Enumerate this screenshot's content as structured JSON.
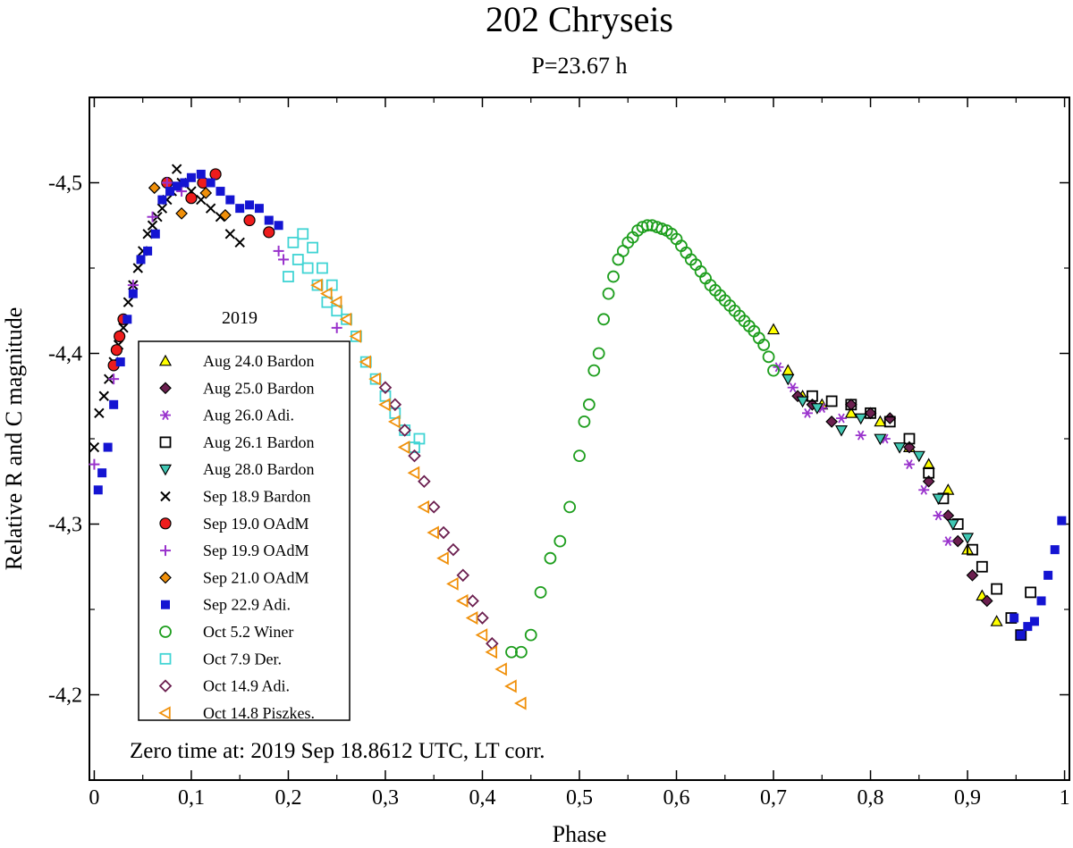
{
  "chart_data": {
    "type": "scatter",
    "title": "202 Chryseis",
    "subtitle": "P=23.67 h",
    "xlabel": "Phase",
    "ylabel": "Relative R and C magnitude",
    "xlim": [
      -0.005,
      1.005
    ],
    "ylim": [
      -4.55,
      -4.15
    ],
    "x_ticks": [
      0,
      0.1,
      0.2,
      0.3,
      0.4,
      0.5,
      0.6,
      0.7,
      0.8,
      0.9,
      1
    ],
    "x_tick_labels": [
      "0",
      "0,1",
      "0,2",
      "0,3",
      "0,4",
      "0,5",
      "0,6",
      "0,7",
      "0,8",
      "0,9",
      "1"
    ],
    "y_ticks": [
      -4.5,
      -4.4,
      -4.3,
      -4.2
    ],
    "y_tick_labels": [
      "-4,5",
      "-4,4",
      "-4,3",
      "-4,2"
    ],
    "legend_title": "2019",
    "legend_position": "left",
    "annotation": "Zero time at: 2019 Sep 18.8612 UTC, LT corr.",
    "series": [
      {
        "name": "Aug 24.0 Bardon",
        "marker": "triangle-up",
        "color": "#ffff00",
        "x": [
          0.7,
          0.715,
          0.73,
          0.75,
          0.78,
          0.81,
          0.84,
          0.86,
          0.88,
          0.9,
          0.915,
          0.93
        ],
        "y": [
          -4.414,
          -4.39,
          -4.375,
          -4.37,
          -4.365,
          -4.36,
          -4.345,
          -4.335,
          -4.32,
          -4.285,
          -4.258,
          -4.243
        ]
      },
      {
        "name": "Aug 25.0 Bardon",
        "marker": "diamond",
        "color": "#6b1f4f",
        "x": [
          0.725,
          0.74,
          0.76,
          0.78,
          0.8,
          0.82,
          0.84,
          0.86,
          0.88,
          0.89,
          0.905,
          0.92
        ],
        "y": [
          -4.375,
          -4.37,
          -4.36,
          -4.37,
          -4.365,
          -4.362,
          -4.345,
          -4.325,
          -4.305,
          -4.29,
          -4.27,
          -4.255
        ]
      },
      {
        "name": "Aug 26.0 Adi.",
        "marker": "asterisk",
        "color": "#9932cc",
        "x": [
          0.705,
          0.72,
          0.735,
          0.75,
          0.77,
          0.79,
          0.815,
          0.84,
          0.855,
          0.87,
          0.88
        ],
        "y": [
          -4.392,
          -4.38,
          -4.365,
          -4.368,
          -4.362,
          -4.352,
          -4.35,
          -4.335,
          -4.32,
          -4.305,
          -4.29
        ]
      },
      {
        "name": "Aug 26.1 Bardon",
        "marker": "square-open",
        "color": "#000000",
        "x": [
          0.74,
          0.76,
          0.78,
          0.8,
          0.82,
          0.84,
          0.86,
          0.875,
          0.89,
          0.905,
          0.915,
          0.93,
          0.945,
          0.955,
          0.965
        ],
        "y": [
          -4.375,
          -4.372,
          -4.37,
          -4.365,
          -4.36,
          -4.35,
          -4.33,
          -4.315,
          -4.3,
          -4.285,
          -4.275,
          -4.262,
          -4.245,
          -4.235,
          -4.26
        ]
      },
      {
        "name": "Aug 28.0 Bardon",
        "marker": "triangle-down",
        "color": "#40c8b4",
        "x": [
          0.715,
          0.73,
          0.745,
          0.77,
          0.79,
          0.81,
          0.83,
          0.85,
          0.87,
          0.885,
          0.9
        ],
        "y": [
          -4.385,
          -4.372,
          -4.368,
          -4.355,
          -4.362,
          -4.35,
          -4.345,
          -4.34,
          -4.315,
          -4.3,
          -4.292
        ]
      },
      {
        "name": "Sep 18.9 Bardon",
        "marker": "x",
        "color": "#000000",
        "x": [
          0.0,
          0.005,
          0.01,
          0.015,
          0.02,
          0.025,
          0.03,
          0.035,
          0.04,
          0.045,
          0.05,
          0.055,
          0.06,
          0.065,
          0.07,
          0.075,
          0.08,
          0.085,
          0.09,
          0.1,
          0.11,
          0.12,
          0.13,
          0.14,
          0.15
        ],
        "y": [
          -4.345,
          -4.365,
          -4.375,
          -4.385,
          -4.395,
          -4.405,
          -4.415,
          -4.43,
          -4.44,
          -4.45,
          -4.46,
          -4.47,
          -4.475,
          -4.48,
          -4.485,
          -4.49,
          -4.495,
          -4.508,
          -4.5,
          -4.495,
          -4.49,
          -4.485,
          -4.48,
          -4.47,
          -4.465
        ]
      },
      {
        "name": "Sep 19.0 OAdM",
        "marker": "circle",
        "color": "#ee1c1c",
        "x": [
          0.02,
          0.023,
          0.026,
          0.03,
          0.075,
          0.1,
          0.112,
          0.125,
          0.16,
          0.18
        ],
        "y": [
          -4.393,
          -4.402,
          -4.41,
          -4.42,
          -4.5,
          -4.491,
          -4.5,
          -4.505,
          -4.478,
          -4.471
        ]
      },
      {
        "name": "Sep 19.9 OAdM",
        "marker": "plus",
        "color": "#9932cc",
        "x": [
          0.0,
          0.02,
          0.04,
          0.06,
          0.075,
          0.09,
          0.19,
          0.195,
          0.25
        ],
        "y": [
          -4.335,
          -4.385,
          -4.44,
          -4.48,
          -4.5,
          -4.495,
          -4.46,
          -4.455,
          -4.415
        ]
      },
      {
        "name": "Sep 21.0 OAdM",
        "marker": "diamond",
        "color": "#f0900a",
        "x": [
          0.062,
          0.09,
          0.115,
          0.135
        ],
        "y": [
          -4.497,
          -4.482,
          -4.494,
          -4.481
        ]
      },
      {
        "name": "Sep 22.9 Adi.",
        "marker": "square",
        "color": "#1414d2",
        "x": [
          0.004,
          0.008,
          0.014,
          0.02,
          0.027,
          0.034,
          0.04,
          0.048,
          0.055,
          0.063,
          0.07,
          0.078,
          0.085,
          0.093,
          0.1,
          0.11,
          0.12,
          0.13,
          0.14,
          0.15,
          0.16,
          0.17,
          0.18,
          0.19,
          0.948,
          0.955,
          0.962,
          0.969,
          0.976,
          0.983,
          0.99,
          0.997
        ],
        "y": [
          -4.32,
          -4.33,
          -4.345,
          -4.37,
          -4.395,
          -4.42,
          -4.435,
          -4.455,
          -4.46,
          -4.47,
          -4.49,
          -4.495,
          -4.498,
          -4.5,
          -4.503,
          -4.505,
          -4.5,
          -4.495,
          -4.49,
          -4.485,
          -4.487,
          -4.485,
          -4.478,
          -4.475,
          -4.245,
          -4.235,
          -4.24,
          -4.243,
          -4.255,
          -4.27,
          -4.285,
          -4.302
        ]
      },
      {
        "name": "Oct 5.2 Winer",
        "marker": "circle-open",
        "color": "#1e9e1e",
        "x": [
          0.43,
          0.44,
          0.45,
          0.46,
          0.47,
          0.48,
          0.49,
          0.5,
          0.505,
          0.51,
          0.515,
          0.52,
          0.525,
          0.53,
          0.535,
          0.54,
          0.545,
          0.55,
          0.555,
          0.56,
          0.565,
          0.57,
          0.575,
          0.58,
          0.585,
          0.59,
          0.595,
          0.6,
          0.605,
          0.61,
          0.615,
          0.62,
          0.625,
          0.63,
          0.635,
          0.64,
          0.645,
          0.65,
          0.655,
          0.66,
          0.665,
          0.67,
          0.675,
          0.68,
          0.685,
          0.69,
          0.695,
          0.7
        ],
        "y": [
          -4.225,
          -4.225,
          -4.235,
          -4.26,
          -4.28,
          -4.29,
          -4.31,
          -4.34,
          -4.36,
          -4.37,
          -4.39,
          -4.4,
          -4.42,
          -4.435,
          -4.445,
          -4.455,
          -4.46,
          -4.465,
          -4.468,
          -4.472,
          -4.474,
          -4.475,
          -4.475,
          -4.474,
          -4.473,
          -4.472,
          -4.47,
          -4.467,
          -4.463,
          -4.459,
          -4.455,
          -4.452,
          -4.448,
          -4.444,
          -4.44,
          -4.437,
          -4.434,
          -4.431,
          -4.428,
          -4.425,
          -4.422,
          -4.419,
          -4.416,
          -4.413,
          -4.409,
          -4.405,
          -4.398,
          -4.39
        ]
      },
      {
        "name": "Oct 7.9 Der.",
        "marker": "square-open",
        "color": "#40d4d4",
        "x": [
          0.2,
          0.205,
          0.21,
          0.215,
          0.22,
          0.225,
          0.23,
          0.235,
          0.24,
          0.245,
          0.25,
          0.26,
          0.27,
          0.28,
          0.29,
          0.3,
          0.31,
          0.32,
          0.33,
          0.335
        ],
        "y": [
          -4.445,
          -4.465,
          -4.455,
          -4.47,
          -4.45,
          -4.462,
          -4.44,
          -4.45,
          -4.43,
          -4.44,
          -4.425,
          -4.42,
          -4.41,
          -4.395,
          -4.385,
          -4.375,
          -4.365,
          -4.355,
          -4.345,
          -4.35
        ]
      },
      {
        "name": "Oct 14.9 Adi.",
        "marker": "diamond-open",
        "color": "#6b1f4f",
        "x": [
          0.3,
          0.31,
          0.32,
          0.33,
          0.34,
          0.35,
          0.36,
          0.37,
          0.38,
          0.39,
          0.4,
          0.41
        ],
        "y": [
          -4.38,
          -4.37,
          -4.355,
          -4.34,
          -4.325,
          -4.31,
          -4.295,
          -4.285,
          -4.27,
          -4.255,
          -4.245,
          -4.23
        ]
      },
      {
        "name": "Oct 14.8 Piszkes.",
        "marker": "triangle-left",
        "color": "#f0900a",
        "x": [
          0.23,
          0.24,
          0.25,
          0.26,
          0.27,
          0.28,
          0.29,
          0.3,
          0.31,
          0.32,
          0.33,
          0.34,
          0.35,
          0.36,
          0.37,
          0.38,
          0.39,
          0.4,
          0.41,
          0.42,
          0.43,
          0.44
        ],
        "y": [
          -4.44,
          -4.435,
          -4.43,
          -4.42,
          -4.41,
          -4.395,
          -4.385,
          -4.37,
          -4.36,
          -4.345,
          -4.33,
          -4.31,
          -4.295,
          -4.28,
          -4.265,
          -4.255,
          -4.245,
          -4.235,
          -4.225,
          -4.215,
          -4.205,
          -4.195
        ]
      }
    ]
  }
}
